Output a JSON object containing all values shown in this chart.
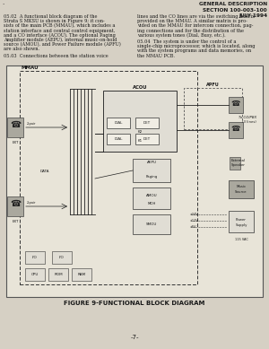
{
  "page_bg": "#d6d0c4",
  "text_color": "#1a1a1a",
  "title_lines": [
    "GENERAL DESCRIPTION",
    "SECTION 100-003-100",
    "JULY 1994"
  ],
  "body_left": "05.02  A functional block diagram of the\nStrata S MKSU is shown in Figure 9; it con-\nsists of the main PCB (MMAU), which includes a\nstation interface and central control equipment,\nand a CO interface (ACOU). The optional Paging\nAmplifier module (AEPU), internal music-on-hold\nsource (AMOU), and Power Failure module (APFU)\nare also shown.\n\n05.03  Connections between the station voice",
  "body_right": "lines and the CO lines are via the switching matrix\nprovided on the MMAU. A similar matrix is pro-\nvided on the MMAU for intercom connection, pag-\ning connections and for the distribution of the\nvarious system tones (Dial, Busy, etc.).\n\n05.04  The system is under the control of a\nsingle-chip microprocessor, which is located, along\nwith the system programs and data memories, on\nthe MMAU PCB.",
  "figure_caption": "FIGURE 9-FUNCTIONAL BLOCK DIAGRAM",
  "page_number": "-7-",
  "diagram_bg": "#e8e4d8",
  "inner_bg": "#d6d0c4"
}
